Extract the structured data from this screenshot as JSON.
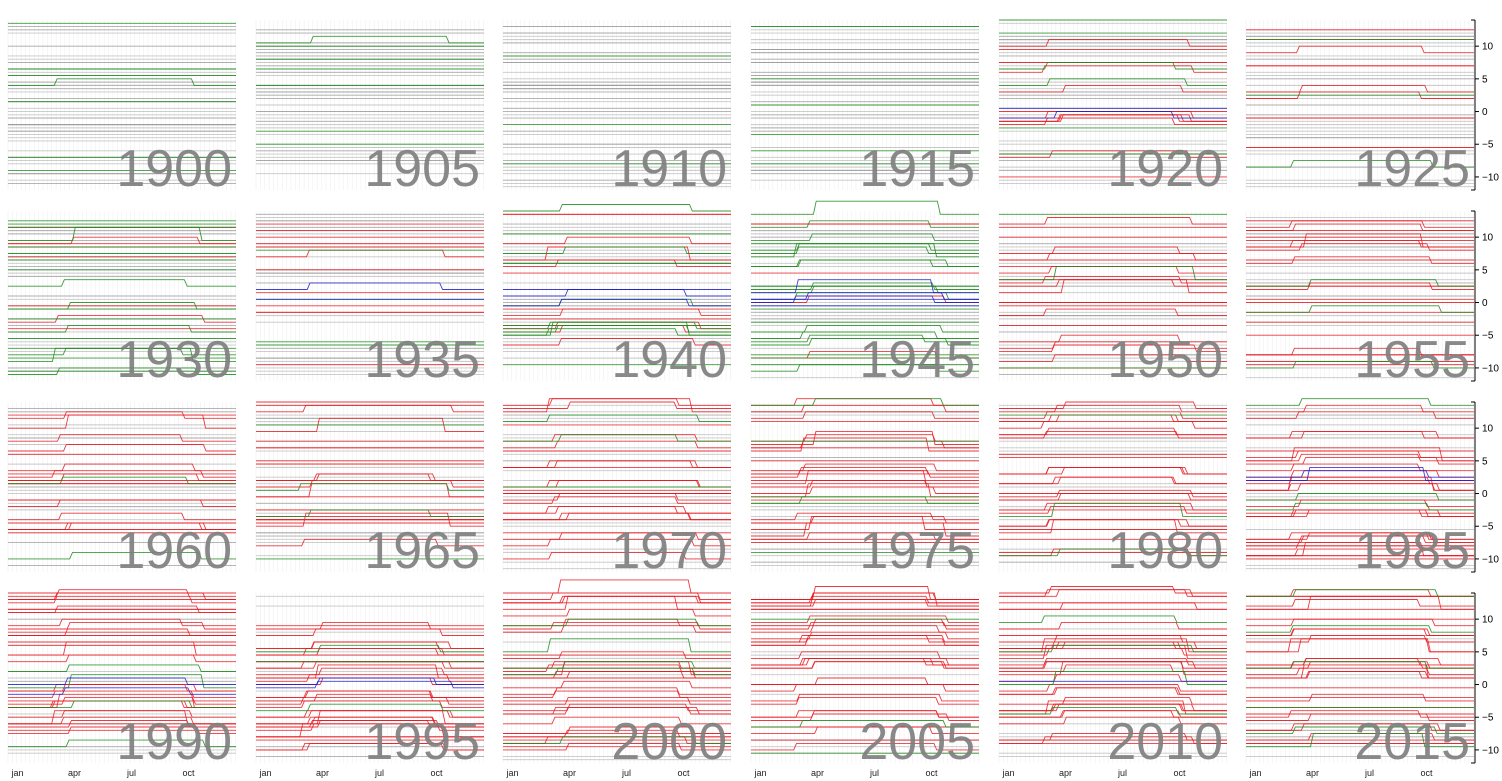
{
  "chart_data": {
    "type": "line",
    "title": "",
    "xlabel": "",
    "ylabel": "",
    "layout": "small-multiples",
    "grid": true,
    "colors": {
      "hidden": "#9a9a9a",
      "grid": "#d4d4d4",
      "east": "#e8181f",
      "west": "#1a8a1a",
      "central": "#1d1dcc",
      "panel_label": "#7f7f7f"
    },
    "shared_axes": {
      "x_ticks": [
        "jan",
        "apr",
        "jul",
        "oct"
      ],
      "x_tick_months": [
        0.5,
        3.5,
        6.5,
        9.5
      ],
      "xlim_months": [
        0,
        12
      ],
      "y_ticks": [
        10,
        5,
        0,
        -5,
        -10
      ],
      "y_tick_labels": [
        "10",
        "5",
        "0",
        "−5",
        "−10"
      ],
      "ylim": [
        -12,
        14
      ]
    },
    "panels": [
      {
        "label": "1900",
        "highlighted": {
          "red": 0,
          "green": 8,
          "blue": 0
        },
        "hidden_count": 60,
        "step_fraction": 0.03
      },
      {
        "label": "1905",
        "highlighted": {
          "red": 0,
          "green": 7,
          "blue": 0
        },
        "hidden_count": 60,
        "step_fraction": 0.05
      },
      {
        "label": "1910",
        "highlighted": {
          "red": 0,
          "green": 3,
          "blue": 0
        },
        "hidden_count": 60,
        "step_fraction": 0.05
      },
      {
        "label": "1915",
        "highlighted": {
          "red": 0,
          "green": 6,
          "blue": 0
        },
        "hidden_count": 58,
        "step_fraction": 0.1
      },
      {
        "label": "1920",
        "highlighted": {
          "red": 14,
          "green": 6,
          "blue": 2
        },
        "hidden_count": 46,
        "step_fraction": 0.4
      },
      {
        "label": "1925",
        "highlighted": {
          "red": 10,
          "green": 3,
          "blue": 0
        },
        "hidden_count": 42,
        "step_fraction": 0.35
      },
      {
        "label": "1930",
        "highlighted": {
          "red": 9,
          "green": 20,
          "blue": 0
        },
        "hidden_count": 40,
        "step_fraction": 0.3
      },
      {
        "label": "1935",
        "highlighted": {
          "red": 12,
          "green": 4,
          "blue": 2
        },
        "hidden_count": 38,
        "step_fraction": 0.35
      },
      {
        "label": "1940",
        "highlighted": {
          "red": 14,
          "green": 12,
          "blue": 3
        },
        "hidden_count": 34,
        "step_fraction": 0.5
      },
      {
        "label": "1945",
        "highlighted": {
          "red": 6,
          "green": 24,
          "blue": 5
        },
        "hidden_count": 30,
        "step_fraction": 0.6
      },
      {
        "label": "1950",
        "highlighted": {
          "red": 22,
          "green": 3,
          "blue": 0
        },
        "hidden_count": 32,
        "step_fraction": 0.45
      },
      {
        "label": "1955",
        "highlighted": {
          "red": 24,
          "green": 3,
          "blue": 0
        },
        "hidden_count": 30,
        "step_fraction": 0.45
      },
      {
        "label": "1960",
        "highlighted": {
          "red": 22,
          "green": 2,
          "blue": 0
        },
        "hidden_count": 30,
        "step_fraction": 0.5
      },
      {
        "label": "1965",
        "highlighted": {
          "red": 24,
          "green": 4,
          "blue": 0
        },
        "hidden_count": 28,
        "step_fraction": 0.5
      },
      {
        "label": "1970",
        "highlighted": {
          "red": 26,
          "green": 3,
          "blue": 0
        },
        "hidden_count": 26,
        "step_fraction": 0.55
      },
      {
        "label": "1975",
        "highlighted": {
          "red": 28,
          "green": 6,
          "blue": 0
        },
        "hidden_count": 24,
        "step_fraction": 0.6
      },
      {
        "label": "1980",
        "highlighted": {
          "red": 30,
          "green": 3,
          "blue": 0
        },
        "hidden_count": 22,
        "step_fraction": 0.65
      },
      {
        "label": "1985",
        "highlighted": {
          "red": 34,
          "green": 3,
          "blue": 2
        },
        "hidden_count": 18,
        "step_fraction": 0.75
      },
      {
        "label": "1990",
        "highlighted": {
          "red": 34,
          "green": 4,
          "blue": 2
        },
        "hidden_count": 16,
        "step_fraction": 0.75
      },
      {
        "label": "1995",
        "highlighted": {
          "red": 36,
          "green": 3,
          "blue": 2
        },
        "hidden_count": 14,
        "step_fraction": 0.75
      },
      {
        "label": "2000",
        "highlighted": {
          "red": 36,
          "green": 5,
          "blue": 0
        },
        "hidden_count": 12,
        "step_fraction": 0.75
      },
      {
        "label": "2005",
        "highlighted": {
          "red": 36,
          "green": 3,
          "blue": 0
        },
        "hidden_count": 12,
        "step_fraction": 0.75
      },
      {
        "label": "2010",
        "highlighted": {
          "red": 36,
          "green": 4,
          "blue": 1
        },
        "hidden_count": 12,
        "step_fraction": 0.75
      },
      {
        "label": "2015",
        "highlighted": {
          "red": 34,
          "green": 6,
          "blue": 0
        },
        "hidden_count": 12,
        "step_fraction": 0.75
      }
    ]
  }
}
